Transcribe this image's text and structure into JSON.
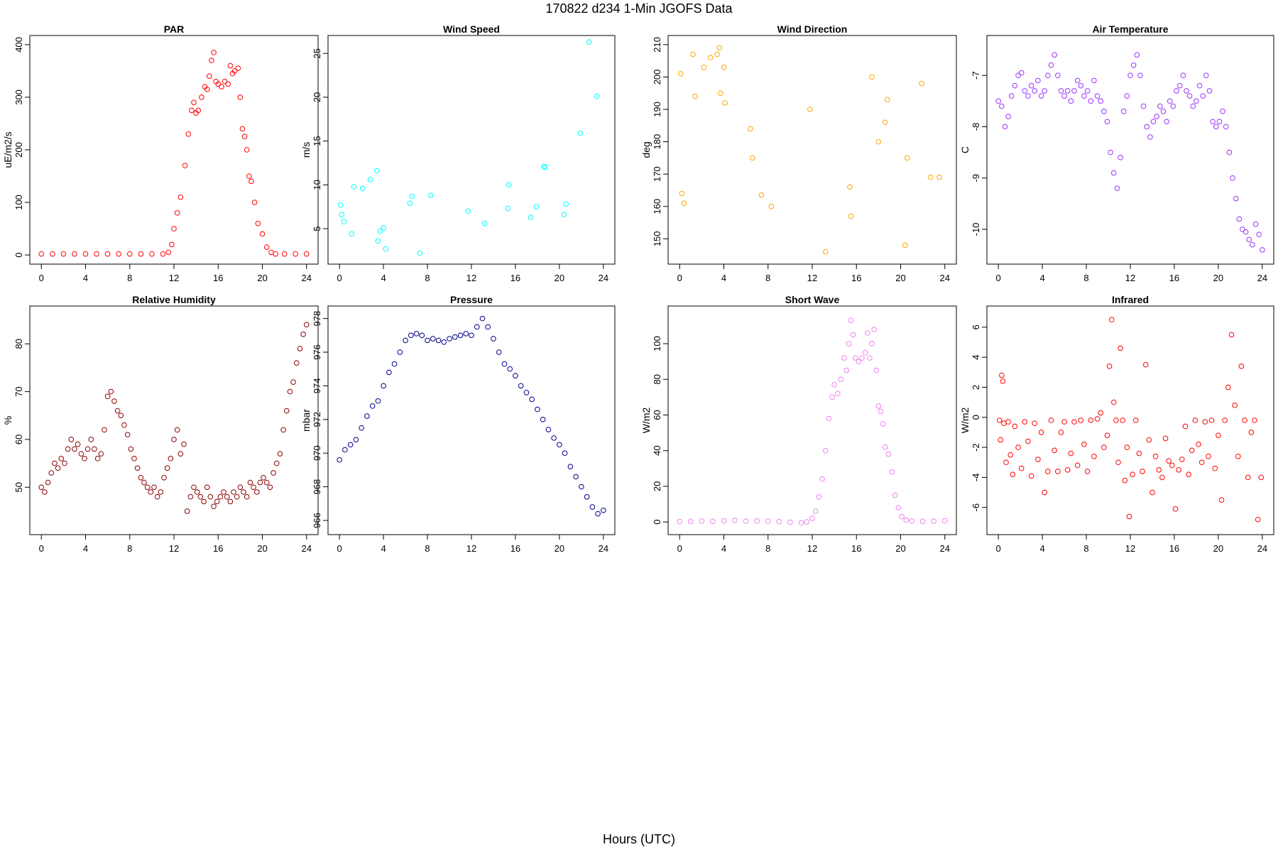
{
  "figure": {
    "title": "170822   d234   1-Min  JGOFS Data",
    "xlabel": "Hours (UTC)"
  },
  "chart_data": [
    {
      "type": "scatter",
      "title": "PAR",
      "xlabel": "",
      "ylabel": "uE/m2/s",
      "color": "#ff0000",
      "xlim": [
        0,
        24
      ],
      "ylim": [
        0,
        400
      ],
      "xticks": [
        0,
        4,
        8,
        12,
        16,
        20,
        24
      ],
      "yticks": [
        0,
        100,
        200,
        300,
        400
      ],
      "x": [
        0,
        1,
        2,
        3,
        4,
        5,
        6,
        7,
        8,
        9,
        10,
        11,
        11.5,
        11.8,
        12,
        12.3,
        12.6,
        13,
        13.3,
        13.6,
        13.8,
        14,
        14.2,
        14.5,
        14.8,
        15,
        15.2,
        15.4,
        15.6,
        15.8,
        16,
        16.3,
        16.6,
        16.9,
        17.1,
        17.3,
        17.5,
        17.8,
        18,
        18.2,
        18.4,
        18.6,
        18.8,
        19,
        19.3,
        19.6,
        20,
        20.4,
        20.8,
        21.2,
        22,
        23,
        24
      ],
      "y": [
        2,
        2,
        2,
        2,
        2,
        2,
        2,
        2,
        2,
        2,
        2,
        2,
        5,
        20,
        50,
        80,
        110,
        170,
        230,
        275,
        290,
        270,
        275,
        300,
        320,
        315,
        340,
        370,
        385,
        330,
        325,
        320,
        330,
        325,
        360,
        345,
        350,
        355,
        300,
        240,
        225,
        200,
        150,
        140,
        100,
        60,
        40,
        15,
        5,
        2,
        2,
        2,
        2
      ]
    },
    {
      "type": "scatter",
      "title": "Wind Speed",
      "xlabel": "",
      "ylabel": "m/s",
      "color": "#00ffff",
      "xlim": [
        0,
        24
      ],
      "ylim": [
        2,
        26
      ],
      "xticks": [
        0,
        4,
        8,
        12,
        16,
        20,
        24
      ],
      "yticks": [
        5,
        10,
        15,
        20,
        25
      ],
      "x": [
        0.1,
        0.2,
        0.4,
        1.1,
        1.3,
        2.1,
        2.8,
        3.4,
        3.5,
        3.7,
        4.0,
        4.2,
        6.4,
        6.6,
        7.3,
        8.3,
        11.7,
        13.2,
        15.3,
        15.4,
        17.4,
        17.9,
        18.6,
        18.7,
        20.4,
        20.6,
        21.9,
        22.7,
        23.4
      ],
      "y": [
        7.7,
        6.6,
        5.8,
        4.4,
        9.8,
        9.6,
        10.6,
        11.6,
        3.6,
        4.7,
        5.1,
        2.7,
        7.9,
        8.7,
        2.2,
        8.8,
        7.0,
        5.6,
        7.3,
        10.0,
        6.3,
        7.5,
        12.1,
        12.0,
        6.6,
        7.8,
        15.9,
        26.3,
        20.1
      ]
    },
    {
      "type": "scatter",
      "title": "Wind Direction",
      "xlabel": "",
      "ylabel": "deg",
      "color": "#ffa500",
      "xlim": [
        0,
        24
      ],
      "ylim": [
        145,
        210
      ],
      "xticks": [
        0,
        4,
        8,
        12,
        16,
        20,
        24
      ],
      "yticks": [
        150,
        160,
        170,
        180,
        190,
        200,
        210
      ],
      "x": [
        0.1,
        0.2,
        0.4,
        1.2,
        1.4,
        2.2,
        2.8,
        3.4,
        3.6,
        3.7,
        4.0,
        4.1,
        6.4,
        6.6,
        7.4,
        8.3,
        11.8,
        13.2,
        15.4,
        15.5,
        17.4,
        18.0,
        18.6,
        18.8,
        20.4,
        20.6,
        21.9,
        22.7,
        23.5
      ],
      "y": [
        201,
        164,
        161,
        207,
        194,
        203,
        206,
        207,
        209,
        195,
        203,
        192,
        184,
        175,
        163.5,
        160,
        190,
        146,
        166,
        157,
        200,
        180,
        186,
        193,
        148,
        175,
        198,
        169,
        169
      ]
    },
    {
      "type": "scatter",
      "title": "Air Temperature",
      "xlabel": "",
      "ylabel": "C",
      "color": "#9b30ff",
      "xlim": [
        0,
        24
      ],
      "ylim": [
        -10.5,
        -6.4
      ],
      "xticks": [
        0,
        4,
        8,
        12,
        16,
        20,
        24
      ],
      "yticks": [
        -10,
        -9,
        -8,
        -7
      ],
      "x": [
        0,
        0.3,
        0.6,
        0.9,
        1.2,
        1.5,
        1.8,
        2.1,
        2.4,
        2.7,
        3.0,
        3.3,
        3.6,
        3.9,
        4.2,
        4.5,
        4.8,
        5.1,
        5.4,
        5.7,
        6.0,
        6.3,
        6.6,
        6.9,
        7.2,
        7.5,
        7.8,
        8.1,
        8.4,
        8.7,
        9.0,
        9.3,
        9.6,
        9.9,
        10.2,
        10.5,
        10.8,
        11.1,
        11.4,
        11.7,
        12.0,
        12.3,
        12.6,
        12.9,
        13.2,
        13.5,
        13.8,
        14.1,
        14.4,
        14.7,
        15.0,
        15.3,
        15.6,
        15.9,
        16.2,
        16.5,
        16.8,
        17.1,
        17.4,
        17.7,
        18.0,
        18.3,
        18.6,
        18.9,
        19.2,
        19.5,
        19.8,
        20.1,
        20.4,
        20.7,
        21.0,
        21.3,
        21.6,
        21.9,
        22.2,
        22.5,
        22.8,
        23.1,
        23.4,
        23.7,
        24
      ],
      "y": [
        -7.5,
        -7.6,
        -8.0,
        -7.8,
        -7.4,
        -7.2,
        -7.0,
        -6.95,
        -7.3,
        -7.4,
        -7.2,
        -7.3,
        -7.1,
        -7.4,
        -7.3,
        -7.0,
        -6.8,
        -6.6,
        -7.0,
        -7.3,
        -7.4,
        -7.3,
        -7.5,
        -7.3,
        -7.1,
        -7.2,
        -7.4,
        -7.3,
        -7.5,
        -7.1,
        -7.4,
        -7.5,
        -7.7,
        -7.9,
        -8.5,
        -8.9,
        -9.2,
        -8.6,
        -7.7,
        -7.4,
        -7.0,
        -6.8,
        -6.6,
        -7.0,
        -7.6,
        -8.0,
        -8.2,
        -7.9,
        -7.8,
        -7.6,
        -7.7,
        -7.9,
        -7.5,
        -7.6,
        -7.3,
        -7.2,
        -7.0,
        -7.3,
        -7.4,
        -7.6,
        -7.5,
        -7.2,
        -7.4,
        -7.0,
        -7.3,
        -7.9,
        -8.0,
        -7.9,
        -7.7,
        -8.0,
        -8.5,
        -9.0,
        -9.4,
        -9.8,
        -10.0,
        -10.05,
        -10.2,
        -10.3,
        -9.9,
        -10.1,
        -10.4
      ]
    },
    {
      "type": "scatter",
      "title": "Relative Humidity",
      "xlabel": "",
      "ylabel": "%",
      "color": "#8b0000",
      "xlim": [
        0,
        24
      ],
      "ylim": [
        42,
        86
      ],
      "xticks": [
        0,
        4,
        8,
        12,
        16,
        20,
        24
      ],
      "yticks": [
        50,
        60,
        70,
        80
      ],
      "x": [
        0,
        0.3,
        0.6,
        0.9,
        1.2,
        1.5,
        1.8,
        2.1,
        2.4,
        2.7,
        3.0,
        3.3,
        3.6,
        3.9,
        4.2,
        4.5,
        4.8,
        5.1,
        5.4,
        5.7,
        6.0,
        6.3,
        6.6,
        6.9,
        7.2,
        7.5,
        7.8,
        8.1,
        8.4,
        8.7,
        9.0,
        9.3,
        9.6,
        9.9,
        10.2,
        10.5,
        10.8,
        11.1,
        11.4,
        11.7,
        12.0,
        12.3,
        12.6,
        12.9,
        13.2,
        13.5,
        13.8,
        14.1,
        14.4,
        14.7,
        15.0,
        15.3,
        15.6,
        15.9,
        16.2,
        16.5,
        16.8,
        17.1,
        17.4,
        17.7,
        18.0,
        18.3,
        18.6,
        18.9,
        19.2,
        19.5,
        19.8,
        20.1,
        20.4,
        20.7,
        21.0,
        21.3,
        21.6,
        21.9,
        22.2,
        22.5,
        22.8,
        23.1,
        23.4,
        23.7,
        24
      ],
      "y": [
        50,
        49,
        51,
        53,
        55,
        54,
        56,
        55,
        58,
        60,
        58,
        59,
        57,
        56,
        58,
        60,
        58,
        56,
        57,
        62,
        69,
        70,
        68,
        66,
        65,
        63,
        61,
        58,
        56,
        54,
        52,
        51,
        50,
        49,
        50,
        48,
        49,
        52,
        54,
        56,
        60,
        62,
        57,
        59,
        45,
        48,
        50,
        49,
        48,
        47,
        50,
        48,
        46,
        47,
        48,
        49,
        48,
        47,
        49,
        48,
        50,
        49,
        48,
        51,
        50,
        49,
        51,
        52,
        51,
        50,
        53,
        55,
        57,
        62,
        66,
        70,
        72,
        76,
        79,
        82,
        84
      ]
    },
    {
      "type": "scatter",
      "title": "Pressure",
      "xlabel": "",
      "ylabel": "mbar",
      "color": "#00008b",
      "xlim": [
        0,
        24
      ],
      "ylim": [
        965.7,
        978.2
      ],
      "xticks": [
        0,
        4,
        8,
        12,
        16,
        20,
        24
      ],
      "yticks": [
        966,
        968,
        970,
        972,
        974,
        976,
        978
      ],
      "x": [
        0,
        0.5,
        1,
        1.5,
        2,
        2.5,
        3,
        3.5,
        4,
        4.5,
        5,
        5.5,
        6,
        6.5,
        7,
        7.5,
        8,
        8.5,
        9,
        9.5,
        10,
        10.5,
        11,
        11.5,
        12,
        12.5,
        13,
        13.5,
        14,
        14.5,
        15,
        15.5,
        16,
        16.5,
        17,
        17.5,
        18,
        18.5,
        19,
        19.5,
        20,
        20.5,
        21,
        21.5,
        22,
        22.5,
        23,
        23.5,
        24
      ],
      "y": [
        969.6,
        970.2,
        970.5,
        970.8,
        971.5,
        972.2,
        972.8,
        973.1,
        974.0,
        974.8,
        975.3,
        976.0,
        976.7,
        977.0,
        977.1,
        977.0,
        976.7,
        976.8,
        976.7,
        976.6,
        976.8,
        976.9,
        977.0,
        977.1,
        977.0,
        977.5,
        978.0,
        977.5,
        976.8,
        976.0,
        975.3,
        975.0,
        974.6,
        974.0,
        973.6,
        973.2,
        972.6,
        972.0,
        971.4,
        970.9,
        970.5,
        970.0,
        969.2,
        968.6,
        968.0,
        967.4,
        966.8,
        966.4,
        966.6
      ]
    },
    {
      "type": "scatter",
      "title": "Short Wave",
      "xlabel": "",
      "ylabel": "W/m2",
      "color": "#ee82ee",
      "xlim": [
        0,
        24
      ],
      "ylim": [
        -2,
        116
      ],
      "xticks": [
        0,
        4,
        8,
        12,
        16,
        20,
        24
      ],
      "yticks": [
        0,
        20,
        40,
        60,
        80,
        100
      ],
      "x": [
        0,
        1,
        2,
        3,
        4,
        5,
        6,
        7,
        8,
        9,
        10,
        11,
        11.5,
        12,
        12.3,
        12.6,
        12.9,
        13.2,
        13.5,
        13.8,
        14.0,
        14.3,
        14.6,
        14.9,
        15.1,
        15.3,
        15.5,
        15.7,
        15.9,
        16.2,
        16.5,
        16.8,
        17.0,
        17.2,
        17.4,
        17.6,
        17.8,
        18.0,
        18.2,
        18.4,
        18.6,
        18.9,
        19.2,
        19.5,
        19.8,
        20.1,
        20.5,
        21,
        22,
        23,
        24
      ],
      "y": [
        0.2,
        0.3,
        0.5,
        0.3,
        0.6,
        0.8,
        0.4,
        0.5,
        0.3,
        0.2,
        -0.2,
        -0.5,
        0.0,
        2,
        6,
        14,
        24,
        40,
        58,
        70,
        77,
        72,
        80,
        92,
        85,
        100,
        113,
        105,
        92,
        90,
        92,
        95,
        106,
        92,
        100,
        108,
        85,
        65,
        62,
        55,
        42,
        38,
        28,
        15,
        8,
        3,
        1,
        0.5,
        0.3,
        0.4,
        0.6
      ]
    },
    {
      "type": "scatter",
      "title": "Infrared",
      "xlabel": "",
      "ylabel": "W/m2",
      "color": "#ff0000",
      "xlim": [
        0,
        24
      ],
      "ylim": [
        -7.2,
        6.8
      ],
      "xticks": [
        0,
        4,
        8,
        12,
        16,
        20,
        24
      ],
      "yticks": [
        -6,
        -4,
        -2,
        0,
        2,
        4,
        6
      ],
      "x": [
        0.1,
        0.2,
        0.3,
        0.4,
        0.5,
        0.7,
        0.9,
        1.1,
        1.3,
        1.5,
        1.8,
        2.1,
        2.4,
        2.7,
        3.0,
        3.3,
        3.6,
        3.9,
        4.2,
        4.5,
        4.8,
        5.1,
        5.4,
        5.7,
        6.0,
        6.3,
        6.6,
        6.9,
        7.2,
        7.5,
        7.8,
        8.1,
        8.4,
        8.7,
        9.0,
        9.3,
        9.6,
        9.9,
        10.1,
        10.3,
        10.5,
        10.7,
        10.9,
        11.1,
        11.3,
        11.5,
        11.7,
        11.9,
        12.2,
        12.5,
        12.8,
        13.1,
        13.4,
        13.7,
        14.0,
        14.3,
        14.6,
        14.9,
        15.2,
        15.5,
        15.8,
        16.1,
        16.4,
        16.7,
        17.0,
        17.3,
        17.6,
        17.9,
        18.2,
        18.5,
        18.8,
        19.1,
        19.4,
        19.7,
        20.0,
        20.3,
        20.6,
        20.9,
        21.2,
        21.5,
        21.8,
        22.1,
        22.4,
        22.7,
        23.0,
        23.3,
        23.6,
        23.9
      ],
      "y": [
        -0.2,
        -1.5,
        2.8,
        2.4,
        -0.4,
        -3.0,
        -0.3,
        -2.5,
        -3.8,
        -0.6,
        -2.0,
        -3.4,
        -0.3,
        -1.6,
        -3.9,
        -0.4,
        -2.8,
        -1.0,
        -5.0,
        -3.6,
        -0.2,
        -2.2,
        -3.6,
        -1.0,
        -0.3,
        -3.5,
        -2.4,
        -0.3,
        -3.2,
        -0.2,
        -1.8,
        -3.6,
        -0.2,
        -2.6,
        -0.1,
        0.3,
        -2.0,
        -1.2,
        3.4,
        6.5,
        1.0,
        -0.2,
        -3.0,
        4.6,
        -0.2,
        -4.2,
        -2.0,
        -6.6,
        -3.8,
        -0.2,
        -2.4,
        -3.6,
        3.5,
        -1.5,
        -5.0,
        -2.6,
        -3.5,
        -4.0,
        -1.4,
        -2.9,
        -3.2,
        -6.1,
        -3.5,
        -2.8,
        -0.6,
        -3.8,
        -2.2,
        -0.2,
        -1.8,
        -3.0,
        -0.3,
        -2.6,
        -0.2,
        -3.4,
        -1.2,
        -5.5,
        -0.2,
        2.0,
        5.5,
        0.8,
        -2.6,
        3.4,
        -0.2,
        -4.0,
        -1.0,
        -0.2,
        -6.8,
        -4.0
      ]
    }
  ]
}
